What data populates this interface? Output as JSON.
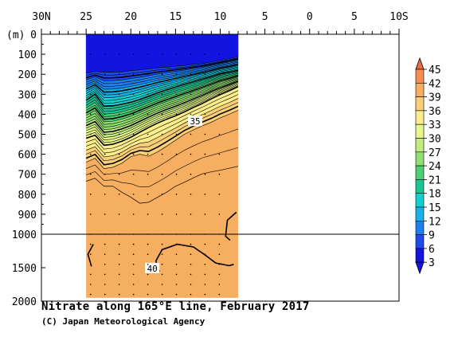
{
  "chart_data": {
    "type": "heatmap",
    "title": "Nitrate along 165°E line, February 2017",
    "credit": "(C) Japan Meteorological Agency",
    "x_axis": {
      "ticks": [
        "30N",
        "25",
        "20",
        "15",
        "10",
        "5",
        "0",
        "5",
        "10S"
      ],
      "tick_values_deg": [
        30,
        25,
        20,
        15,
        10,
        5,
        0,
        -5,
        -10
      ],
      "range_deg": [
        30,
        -10
      ],
      "note_sign": "positive = north, negative = south"
    },
    "y_axis": {
      "unit_label": "(m)",
      "ticks_upper": [
        "0",
        "100",
        "200",
        "300",
        "400",
        "500",
        "600",
        "700",
        "800",
        "900",
        "1000"
      ],
      "ticks_lower": [
        "1500",
        "2000"
      ],
      "range_m": [
        0,
        2000
      ],
      "scale_break_m": 1000
    },
    "data_extent_lat": [
      25,
      8
    ],
    "data_extent_depth_m": [
      0,
      1950
    ],
    "colorbar": {
      "labels": [
        "45",
        "42",
        "39",
        "36",
        "33",
        "30",
        "27",
        "24",
        "21",
        "18",
        "15",
        "12",
        "9",
        "6",
        "3"
      ],
      "levels": [
        45,
        42,
        39,
        36,
        33,
        30,
        27,
        24,
        21,
        18,
        15,
        12,
        9,
        6,
        3
      ],
      "colors": [
        "#f06a43",
        "#f48d50",
        "#f6ae61",
        "#f9d077",
        "#fbec8c",
        "#e9f58d",
        "#c2ec82",
        "#8fdf72",
        "#50cf72",
        "#1ac495",
        "#13cfd0",
        "#14b3ea",
        "#1b80ee",
        "#1d4ae8",
        "#1414e0"
      ]
    },
    "contour_labels": [
      {
        "value": "35",
        "lat": 12.8,
        "depth_m": 435
      },
      {
        "value": "40",
        "lat": 17.6,
        "depth_m": 1510
      }
    ],
    "nitrate_profiles": {
      "note": "approximate isoline depth (m) of selected nitrate values, by latitude",
      "lats": [
        25,
        24,
        23,
        22,
        21,
        20,
        19,
        18,
        17,
        16,
        15,
        14,
        13,
        12,
        11,
        10,
        9,
        8
      ],
      "iso_3": [
        195,
        185,
        190,
        190,
        188,
        182,
        178,
        173,
        168,
        165,
        160,
        156,
        150,
        146,
        138,
        130,
        122,
        112
      ],
      "iso_15": [
        330,
        300,
        360,
        358,
        350,
        340,
        326,
        310,
        293,
        278,
        264,
        250,
        238,
        225,
        212,
        198,
        190,
        180
      ],
      "iso_30": [
        520,
        505,
        555,
        550,
        535,
        515,
        490,
        466,
        444,
        425,
        408,
        388,
        366,
        346,
        323,
        302,
        283,
        262
      ],
      "iso_36": [
        640,
        620,
        672,
        665,
        645,
        612,
        600,
        610,
        588,
        560,
        530,
        500,
        478,
        458,
        440,
        418,
        400,
        380
      ],
      "iso_39": [
        735,
        720,
        760,
        760,
        790,
        815,
        845,
        840,
        815,
        790,
        760,
        740,
        718,
        698,
        688,
        680,
        670,
        660
      ]
    }
  }
}
